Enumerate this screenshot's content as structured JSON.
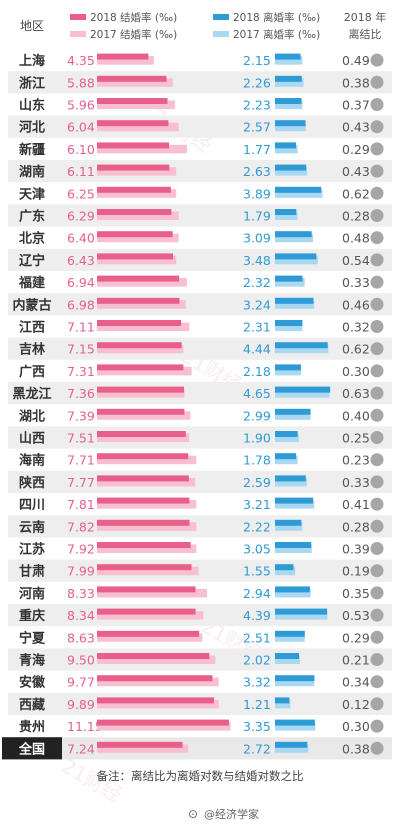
{
  "header": {
    "region": "地区",
    "legend_marriage_2018": "2018 结婚率 (‰)",
    "legend_marriage_2017": "2017 结婚率 (‰)",
    "legend_divorce_2018": "2018 离婚率 (‰)",
    "legend_divorce_2017": "2017 离婚率 (‰)",
    "ratio_line1": "2018 年",
    "ratio_line2": "离结比"
  },
  "footnote": "备注：离结比为离婚对数与结婚对数之比",
  "credit": "@经济学家",
  "watermark": "21财经",
  "colors": {
    "marriage_2018": "#e8608a",
    "marriage_2017": "#f7bfd0",
    "divorce_2018": "#2e9bd6",
    "divorce_2017": "#a9d8f2",
    "row_alt": "#eeeeee",
    "total_label_bg": "#222222",
    "ratio_dot": "#a6a6a6"
  },
  "chart_data": {
    "type": "bar",
    "title": "",
    "categories": [
      "上海",
      "浙江",
      "山东",
      "河北",
      "新疆",
      "湖南",
      "天津",
      "广东",
      "北京",
      "辽宁",
      "福建",
      "内蒙古",
      "江西",
      "吉林",
      "广西",
      "黑龙江",
      "湖北",
      "山西",
      "海南",
      "陕西",
      "四川",
      "云南",
      "江苏",
      "甘肃",
      "河南",
      "重庆",
      "宁夏",
      "青海",
      "安徽",
      "西藏",
      "贵州",
      "全国"
    ],
    "series": [
      {
        "name": "2018 结婚率 (‰)",
        "values": [
          4.35,
          5.88,
          5.96,
          6.04,
          6.1,
          6.11,
          6.25,
          6.29,
          6.4,
          6.43,
          6.94,
          6.98,
          7.11,
          7.15,
          7.31,
          7.36,
          7.39,
          7.51,
          7.71,
          7.77,
          7.81,
          7.82,
          7.92,
          7.99,
          8.33,
          8.34,
          8.63,
          9.5,
          9.77,
          9.89,
          11.15,
          7.24
        ]
      },
      {
        "name": "2017 结婚率 (‰)",
        "values": [
          4.8,
          6.4,
          6.6,
          6.9,
          7.6,
          6.7,
          6.7,
          6.9,
          6.9,
          6.7,
          7.6,
          7.5,
          7.8,
          7.3,
          8.0,
          7.4,
          7.9,
          7.8,
          8.4,
          8.3,
          8.4,
          8.4,
          8.4,
          8.6,
          9.3,
          9.0,
          8.9,
          10.0,
          10.3,
          10.3,
          11.3,
          7.7
        ]
      },
      {
        "name": "2018 离婚率 (‰)",
        "values": [
          2.15,
          2.26,
          2.23,
          2.57,
          1.77,
          2.63,
          3.89,
          1.79,
          3.09,
          3.48,
          2.32,
          3.24,
          2.31,
          4.44,
          2.18,
          4.65,
          2.99,
          1.9,
          1.78,
          2.59,
          3.21,
          2.22,
          3.05,
          1.55,
          2.94,
          4.39,
          2.51,
          2.02,
          3.32,
          1.21,
          3.35,
          2.72
        ]
      },
      {
        "name": "2017 离婚率 (‰)",
        "values": [
          2.3,
          2.4,
          2.3,
          2.6,
          1.9,
          2.7,
          4.0,
          1.9,
          3.2,
          3.6,
          2.5,
          3.3,
          2.3,
          4.5,
          2.2,
          4.6,
          3.0,
          2.0,
          1.9,
          2.7,
          3.3,
          2.3,
          3.1,
          1.7,
          3.0,
          4.4,
          2.5,
          2.1,
          3.3,
          1.3,
          3.4,
          2.8
        ]
      },
      {
        "name": "2018 年离结比",
        "values": [
          0.49,
          0.38,
          0.37,
          0.43,
          0.29,
          0.43,
          0.62,
          0.28,
          0.48,
          0.54,
          0.33,
          0.46,
          0.32,
          0.62,
          0.3,
          0.63,
          0.4,
          0.25,
          0.23,
          0.33,
          0.41,
          0.28,
          0.39,
          0.19,
          0.35,
          0.53,
          0.29,
          0.21,
          0.34,
          0.12,
          0.3,
          0.38
        ]
      }
    ],
    "marriage_xlim": [
      0,
      11.5
    ],
    "divorce_xlim": [
      0,
      4.8
    ],
    "ratio_range": [
      0,
      0.65
    ],
    "legend": "top",
    "grid": false
  }
}
